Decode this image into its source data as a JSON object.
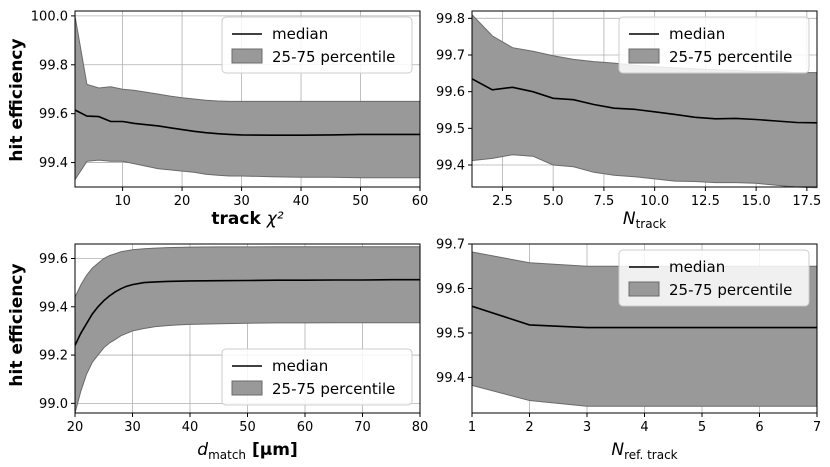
{
  "figure": {
    "shared_ylabel": "hit efficiency"
  },
  "chart_data": [
    {
      "id": "p1",
      "type": "area",
      "xlabel": "track χ²",
      "ylabel": "hit efficiency",
      "xlim": [
        2,
        60
      ],
      "ylim": [
        99.3,
        100.02
      ],
      "xticks": [
        10,
        20,
        30,
        40,
        50,
        60
      ],
      "xtick_labels": [
        "10",
        "20",
        "30",
        "40",
        "50",
        "60"
      ],
      "yticks": [
        99.4,
        99.6,
        99.8,
        100.0
      ],
      "ytick_labels": [
        "99.4",
        "99.6",
        "99.8",
        "100.0"
      ],
      "legend": {
        "position": "top-right",
        "median_label": "median",
        "band_label": "25-75 percentile"
      },
      "series": [
        {
          "name": "median",
          "x": [
            2,
            4,
            6,
            8,
            10,
            12,
            14,
            16,
            18,
            20,
            22,
            24,
            26,
            28,
            30,
            35,
            40,
            45,
            50,
            55,
            60
          ],
          "values": [
            99.615,
            99.59,
            99.588,
            99.568,
            99.568,
            99.56,
            99.555,
            99.55,
            99.542,
            99.535,
            99.528,
            99.522,
            99.518,
            99.515,
            99.513,
            99.512,
            99.512,
            99.513,
            99.515,
            99.515,
            99.515
          ]
        },
        {
          "name": "25th percentile",
          "x": [
            2,
            4,
            6,
            8,
            10,
            12,
            14,
            16,
            18,
            20,
            22,
            24,
            26,
            28,
            30,
            35,
            40,
            45,
            50,
            55,
            60
          ],
          "values": [
            99.33,
            99.405,
            99.41,
            99.405,
            99.405,
            99.395,
            99.385,
            99.375,
            99.37,
            99.365,
            99.36,
            99.352,
            99.348,
            99.345,
            99.345,
            99.342,
            99.34,
            99.34,
            99.338,
            99.338,
            99.338
          ]
        },
        {
          "name": "75th percentile",
          "x": [
            2,
            4,
            6,
            8,
            10,
            12,
            14,
            16,
            18,
            20,
            22,
            24,
            26,
            28,
            30,
            35,
            40,
            45,
            50,
            55,
            60
          ],
          "values": [
            100.0,
            99.72,
            99.705,
            99.71,
            99.7,
            99.695,
            99.688,
            99.68,
            99.672,
            99.665,
            99.66,
            99.655,
            99.652,
            99.65,
            99.65,
            99.65,
            99.65,
            99.65,
            99.65,
            99.65,
            99.65
          ]
        }
      ]
    },
    {
      "id": "p2",
      "type": "area",
      "xlabel": "N",
      "xlabel_sub": "track",
      "xlim": [
        1,
        18
      ],
      "ylim": [
        99.34,
        99.82
      ],
      "xticks": [
        2.5,
        5.0,
        7.5,
        10.0,
        12.5,
        15.0,
        17.5
      ],
      "xtick_labels": [
        "2.5",
        "5.0",
        "7.5",
        "10.0",
        "12.5",
        "15.0",
        "17.5"
      ],
      "yticks": [
        99.4,
        99.5,
        99.6,
        99.7,
        99.8
      ],
      "ytick_labels": [
        "99.4",
        "99.5",
        "99.6",
        "99.7",
        "99.8"
      ],
      "legend": {
        "position": "top-right",
        "median_label": "median",
        "band_label": "25-75 percentile"
      },
      "series": [
        {
          "name": "median",
          "x": [
            1,
            2,
            3,
            4,
            5,
            6,
            7,
            8,
            9,
            10,
            11,
            12,
            13,
            14,
            15,
            16,
            17,
            18
          ],
          "values": [
            99.635,
            99.605,
            99.612,
            99.6,
            99.582,
            99.578,
            99.565,
            99.555,
            99.552,
            99.545,
            99.538,
            99.53,
            99.526,
            99.527,
            99.524,
            99.52,
            99.516,
            99.515
          ]
        },
        {
          "name": "25th percentile",
          "x": [
            1,
            2,
            3,
            4,
            5,
            6,
            7,
            8,
            9,
            10,
            11,
            12,
            13,
            14,
            15,
            16,
            17,
            18
          ],
          "values": [
            99.412,
            99.418,
            99.428,
            99.424,
            99.4,
            99.395,
            99.38,
            99.372,
            99.368,
            99.362,
            99.356,
            99.355,
            99.352,
            99.352,
            99.35,
            99.345,
            99.34,
            99.338
          ]
        },
        {
          "name": "75th percentile",
          "x": [
            1,
            2,
            3,
            4,
            5,
            6,
            7,
            8,
            9,
            10,
            11,
            12,
            13,
            14,
            15,
            16,
            17,
            18
          ],
          "values": [
            99.81,
            99.752,
            99.72,
            99.71,
            99.698,
            99.688,
            99.682,
            99.678,
            99.672,
            99.668,
            99.665,
            99.662,
            99.66,
            99.658,
            99.655,
            99.655,
            99.652,
            99.652
          ]
        }
      ]
    },
    {
      "id": "p3",
      "type": "area",
      "xlabel": "d",
      "xlabel_sub": "match",
      "xlabel_tail": " [μm]",
      "ylabel": "hit efficiency",
      "xlim": [
        20,
        80
      ],
      "ylim": [
        98.96,
        99.66
      ],
      "xticks": [
        20,
        30,
        40,
        50,
        60,
        70,
        80
      ],
      "xtick_labels": [
        "20",
        "30",
        "40",
        "50",
        "60",
        "70",
        "80"
      ],
      "yticks": [
        99.0,
        99.2,
        99.4,
        99.6
      ],
      "ytick_labels": [
        "99.0",
        "99.2",
        "99.4",
        "99.6"
      ],
      "legend": {
        "position": "bottom-right",
        "median_label": "median",
        "band_label": "25-75 percentile"
      },
      "series": [
        {
          "name": "median",
          "x": [
            20,
            21,
            22,
            23,
            24,
            25,
            26,
            27,
            28,
            29,
            30,
            32,
            34,
            36,
            38,
            40,
            45,
            50,
            55,
            60,
            65,
            70,
            75,
            80
          ],
          "values": [
            99.24,
            99.29,
            99.33,
            99.37,
            99.4,
            99.425,
            99.445,
            99.462,
            99.475,
            99.485,
            99.492,
            99.5,
            99.503,
            99.505,
            99.506,
            99.507,
            99.508,
            99.509,
            99.51,
            99.51,
            99.511,
            99.511,
            99.512,
            99.512
          ]
        },
        {
          "name": "25th percentile",
          "x": [
            20,
            21,
            22,
            23,
            24,
            25,
            26,
            27,
            28,
            29,
            30,
            32,
            34,
            36,
            38,
            40,
            45,
            50,
            55,
            60,
            65,
            70,
            75,
            80
          ],
          "values": [
            98.96,
            99.05,
            99.12,
            99.17,
            99.2,
            99.23,
            99.25,
            99.265,
            99.28,
            99.29,
            99.3,
            99.31,
            99.318,
            99.322,
            99.325,
            99.327,
            99.33,
            99.332,
            99.333,
            99.333,
            99.334,
            99.334,
            99.334,
            99.334
          ]
        },
        {
          "name": "75th percentile",
          "x": [
            20,
            21,
            22,
            23,
            24,
            25,
            26,
            27,
            28,
            29,
            30,
            32,
            34,
            36,
            38,
            40,
            45,
            50,
            55,
            60,
            65,
            70,
            75,
            80
          ],
          "values": [
            99.44,
            99.49,
            99.53,
            99.56,
            99.58,
            99.6,
            99.612,
            99.62,
            99.628,
            99.632,
            99.636,
            99.64,
            99.643,
            99.645,
            99.646,
            99.647,
            99.648,
            99.648,
            99.649,
            99.649,
            99.649,
            99.649,
            99.649,
            99.649
          ]
        }
      ]
    },
    {
      "id": "p4",
      "type": "area",
      "xlabel": "N",
      "xlabel_sub": "ref. track",
      "xlim": [
        1,
        7
      ],
      "ylim": [
        99.32,
        99.7
      ],
      "xticks": [
        1,
        2,
        3,
        4,
        5,
        6,
        7
      ],
      "xtick_labels": [
        "1",
        "2",
        "3",
        "4",
        "5",
        "6",
        "7"
      ],
      "yticks": [
        99.4,
        99.5,
        99.6,
        99.7
      ],
      "ytick_labels": [
        "99.4",
        "99.5",
        "99.6",
        "99.7"
      ],
      "legend": {
        "position": "top-right",
        "median_label": "median",
        "band_label": "25-75 percentile"
      },
      "series": [
        {
          "name": "median",
          "x": [
            1,
            2,
            3,
            4,
            5,
            6,
            7
          ],
          "values": [
            99.56,
            99.518,
            99.512,
            99.512,
            99.512,
            99.512,
            99.512
          ]
        },
        {
          "name": "25th percentile",
          "x": [
            1,
            2,
            3,
            4,
            5,
            6,
            7
          ],
          "values": [
            99.382,
            99.348,
            99.335,
            99.335,
            99.335,
            99.335,
            99.335
          ]
        },
        {
          "name": "75th percentile",
          "x": [
            1,
            2,
            3,
            4,
            5,
            6,
            7
          ],
          "values": [
            99.682,
            99.658,
            99.65,
            99.65,
            99.65,
            99.65,
            99.65
          ]
        }
      ]
    }
  ]
}
